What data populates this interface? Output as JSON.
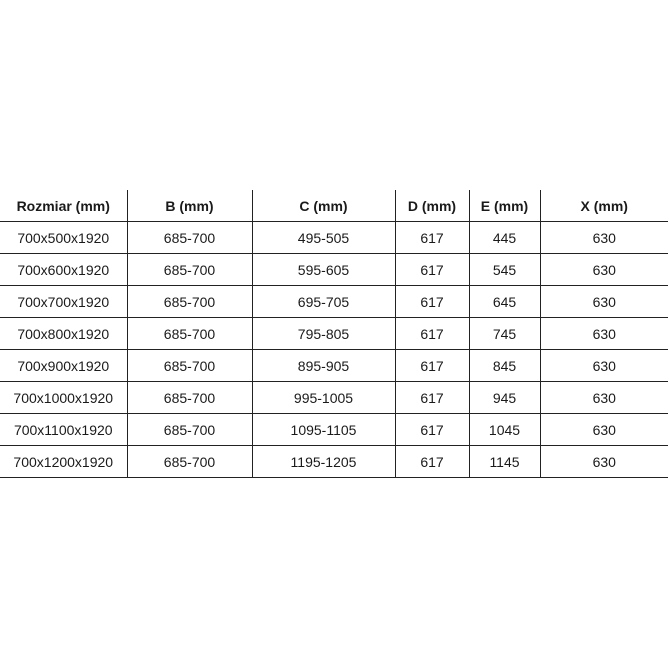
{
  "table": {
    "headers": [
      "Rozmiar (mm)",
      "B (mm)",
      "C (mm)",
      "D (mm)",
      "E (mm)",
      "X (mm)"
    ],
    "rows": [
      [
        "700x500x1920",
        "685-700",
        "495-505",
        "617",
        "445",
        "630"
      ],
      [
        "700x600x1920",
        "685-700",
        "595-605",
        "617",
        "545",
        "630"
      ],
      [
        "700x700x1920",
        "685-700",
        "695-705",
        "617",
        "645",
        "630"
      ],
      [
        "700x800x1920",
        "685-700",
        "795-805",
        "617",
        "745",
        "630"
      ],
      [
        "700x900x1920",
        "685-700",
        "895-905",
        "617",
        "845",
        "630"
      ],
      [
        "700x1000x1920",
        "685-700",
        "995-1005",
        "617",
        "945",
        "630"
      ],
      [
        "700x1100x1920",
        "685-700",
        "1095-1105",
        "617",
        "1045",
        "630"
      ],
      [
        "700x1200x1920",
        "685-700",
        "1195-1205",
        "617",
        "1145",
        "630"
      ]
    ]
  }
}
